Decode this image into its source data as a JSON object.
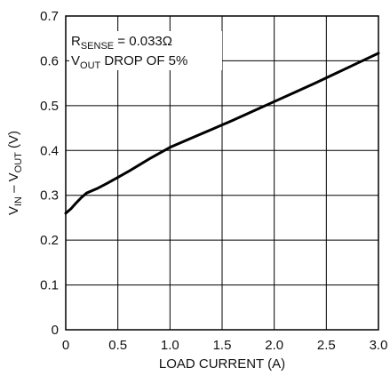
{
  "chart_data": {
    "type": "line",
    "title": "",
    "xlabel": "LOAD CURRENT (A)",
    "ylabel": {
      "v1": "V",
      "v1_sub": "IN",
      "dash": " – V",
      "v2_sub": "OUT",
      "unit": " (V)"
    },
    "xlim": [
      0,
      3.0
    ],
    "ylim": [
      0,
      0.7
    ],
    "x_ticks": [
      0,
      0.5,
      1.0,
      1.5,
      2.0,
      2.5,
      3.0
    ],
    "x_tick_labels": [
      "0",
      "0.5",
      "1.0",
      "1.5",
      "2.0",
      "2.5",
      "3.0"
    ],
    "y_ticks": [
      0,
      0.1,
      0.2,
      0.3,
      0.4,
      0.5,
      0.6,
      0.7
    ],
    "y_tick_labels": [
      "0",
      "0.1",
      "0.2",
      "0.3",
      "0.4",
      "0.5",
      "0.6",
      "0.7"
    ],
    "grid": true,
    "legend": "none",
    "series": [
      {
        "color": "#000000",
        "x": [
          0,
          0.05,
          0.1,
          0.15,
          0.2,
          0.3,
          0.4,
          0.5,
          0.6,
          0.7,
          0.8,
          0.9,
          1.0,
          1.2,
          1.4,
          1.6,
          1.8,
          2.0,
          2.2,
          2.4,
          2.6,
          2.8,
          3.0
        ],
        "y": [
          0.26,
          0.27,
          0.283,
          0.295,
          0.305,
          0.315,
          0.327,
          0.34,
          0.353,
          0.367,
          0.381,
          0.394,
          0.407,
          0.427,
          0.447,
          0.467,
          0.488,
          0.509,
          0.53,
          0.551,
          0.573,
          0.595,
          0.617
        ]
      }
    ],
    "annotations": {
      "line1_main": "R",
      "line1_sub": "SENSE",
      "line1_rest": " = 0.033Ω",
      "line2_main": "V",
      "line2_sub": "OUT",
      "line2_rest": " DROP OF 5%"
    }
  }
}
